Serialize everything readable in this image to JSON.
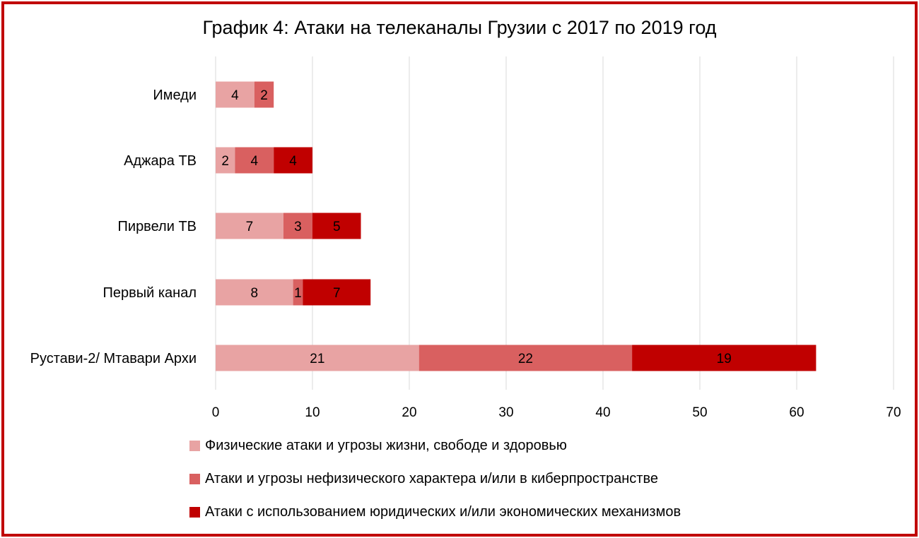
{
  "chart_data": {
    "type": "bar",
    "orientation": "horizontal",
    "stacked": true,
    "title": "График 4: Атаки на телеканалы Грузии с 2017 по 2019 год",
    "categories": [
      "Имеди",
      "Аджара ТВ",
      "Пирвели ТВ",
      "Первый канал",
      "Рустави-2/ Мтавари Архи"
    ],
    "series": [
      {
        "name": "Физические атаки и угрозы жизни, свободе и здоровью",
        "color": "#e8a3a3",
        "values": [
          4,
          2,
          7,
          8,
          21
        ]
      },
      {
        "name": "Атаки и угрозы нефизического характера и/или в киберпространстве",
        "color": "#d96060",
        "values": [
          2,
          4,
          3,
          1,
          22
        ]
      },
      {
        "name": "Атаки с использованием юридических и/или экономических механизмов",
        "color": "#c00000",
        "values": [
          0,
          4,
          5,
          7,
          19
        ]
      }
    ],
    "xlim": [
      0,
      70
    ],
    "xticks": [
      "0",
      "10",
      "20",
      "30",
      "40",
      "50",
      "60",
      "70"
    ],
    "grid": true,
    "legend_position": "bottom",
    "border_color": "#c00000"
  }
}
